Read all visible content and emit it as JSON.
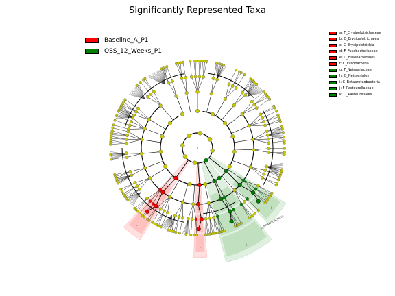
{
  "title": "Significantly Represented Taxa",
  "colors": {
    "baseline": "#ff0000",
    "oss": "#008000",
    "node": "#c8c800",
    "node_edge": "#555555"
  },
  "legend_groups": [
    {
      "label": "Baseline_A_P1",
      "color": "#ff0000"
    },
    {
      "label": "OSS_12_Weeks_P1",
      "color": "#008000"
    }
  ],
  "legend_clades": [
    {
      "label": "a: F_Erysipelotrichaceae",
      "color": "#ff0000"
    },
    {
      "label": "b: O_Erysipelotrichales",
      "color": "#ff0000"
    },
    {
      "label": "c: C_Erysipelotrichia",
      "color": "#ff0000"
    },
    {
      "label": "d: F_Fusobacteriaceae",
      "color": "#ff0000"
    },
    {
      "label": "e: O_Fusobacteriales",
      "color": "#ff0000"
    },
    {
      "label": "f: C_Fusobacteria",
      "color": "#ff0000"
    },
    {
      "label": "g: F_Neisseriaceae",
      "color": "#008000"
    },
    {
      "label": "h: O_Neisseriales",
      "color": "#008000"
    },
    {
      "label": "i: C_Betaproteobacteria",
      "color": "#008000"
    },
    {
      "label": "j: F_Pasteurellaceae",
      "color": "#008000"
    },
    {
      "label": "k: O_Pasteurellales",
      "color": "#008000"
    }
  ],
  "highlights": [
    {
      "group": "Baseline_A_P1",
      "letters": [
        "c",
        "b",
        "a"
      ]
    },
    {
      "group": "Baseline_A_P1",
      "letters": [
        "f",
        "e",
        "d"
      ]
    },
    {
      "group": "OSS_12_Weeks_P1",
      "letters": [
        "i",
        "h",
        "g"
      ]
    },
    {
      "group": "OSS_12_Weeks_P1",
      "letters": [
        "k",
        "j"
      ]
    }
  ],
  "wedge_label": "p_Proteobacteria"
}
